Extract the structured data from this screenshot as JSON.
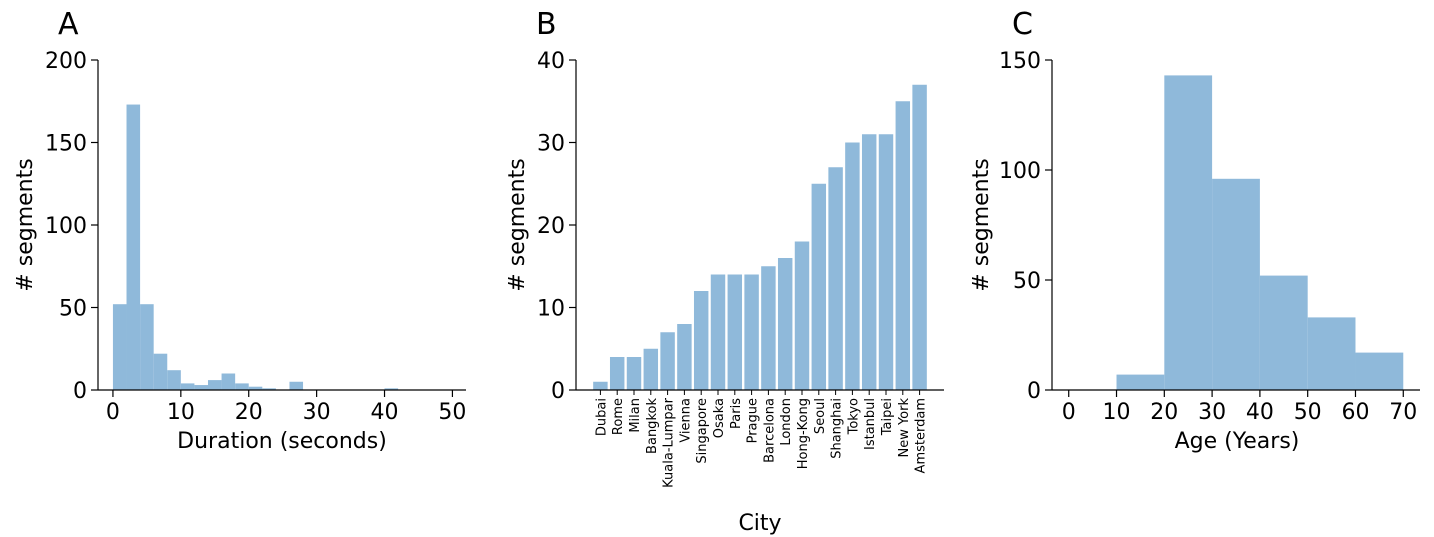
{
  "colors": {
    "bar": "#8fb9da",
    "axis": "#000000"
  },
  "chart_data": [
    {
      "panel_label": "A",
      "type": "bar",
      "subtype": "histogram",
      "xlabel": "Duration (seconds)",
      "ylabel": "# segments",
      "xlim": [
        -2.2,
        52
      ],
      "ylim": [
        0,
        200
      ],
      "xticks": [
        "0",
        "10",
        "20",
        "30",
        "40",
        "50"
      ],
      "yticks": [
        "0",
        "50",
        "100",
        "150",
        "200"
      ],
      "bins": [
        {
          "x0": 0,
          "x1": 2,
          "value": 52
        },
        {
          "x0": 2,
          "x1": 4,
          "value": 173
        },
        {
          "x0": 4,
          "x1": 6,
          "value": 52
        },
        {
          "x0": 6,
          "x1": 8,
          "value": 22
        },
        {
          "x0": 8,
          "x1": 10,
          "value": 12
        },
        {
          "x0": 10,
          "x1": 12,
          "value": 4
        },
        {
          "x0": 12,
          "x1": 14,
          "value": 3
        },
        {
          "x0": 14,
          "x1": 16,
          "value": 6
        },
        {
          "x0": 16,
          "x1": 18,
          "value": 10
        },
        {
          "x0": 18,
          "x1": 20,
          "value": 4
        },
        {
          "x0": 20,
          "x1": 22,
          "value": 2
        },
        {
          "x0": 22,
          "x1": 24,
          "value": 1
        },
        {
          "x0": 26,
          "x1": 28,
          "value": 5
        },
        {
          "x0": 40,
          "x1": 42,
          "value": 1
        }
      ],
      "grid": false,
      "legend": "none"
    },
    {
      "panel_label": "B",
      "type": "bar",
      "xlabel": "City",
      "ylabel": "# segments",
      "ylim": [
        0,
        40
      ],
      "yticks": [
        "0",
        "10",
        "20",
        "30",
        "40"
      ],
      "categories": [
        "Dubai",
        "Rome",
        "Milan",
        "Bangkok",
        "Kuala-Lumpar",
        "Vienna",
        "Singapore",
        "Osaka",
        "Paris",
        "Prague",
        "Barcelona",
        "London",
        "Hong-Kong",
        "Seoul",
        "Shanghai",
        "Tokyo",
        "Istanbul",
        "Taipei",
        "New York",
        "Amsterdam"
      ],
      "values": [
        1,
        4,
        4,
        5,
        7,
        8,
        12,
        14,
        14,
        14,
        15,
        16,
        18,
        25,
        27,
        30,
        31,
        31,
        35,
        37
      ],
      "grid": false,
      "legend": "none"
    },
    {
      "panel_label": "C",
      "type": "bar",
      "subtype": "histogram",
      "xlabel": "Age (Years)",
      "ylabel": "# segments",
      "xlim": [
        -3.5,
        73.5
      ],
      "ylim": [
        0,
        150
      ],
      "xticks": [
        "0",
        "10",
        "20",
        "30",
        "40",
        "50",
        "60",
        "70"
      ],
      "yticks": [
        "0",
        "50",
        "100",
        "150"
      ],
      "bins": [
        {
          "x0": 0,
          "x1": 10,
          "value": 0
        },
        {
          "x0": 10,
          "x1": 20,
          "value": 7
        },
        {
          "x0": 20,
          "x1": 30,
          "value": 143
        },
        {
          "x0": 30,
          "x1": 40,
          "value": 96
        },
        {
          "x0": 40,
          "x1": 50,
          "value": 52
        },
        {
          "x0": 50,
          "x1": 60,
          "value": 33
        },
        {
          "x0": 60,
          "x1": 70,
          "value": 17
        }
      ],
      "grid": false,
      "legend": "none"
    }
  ]
}
